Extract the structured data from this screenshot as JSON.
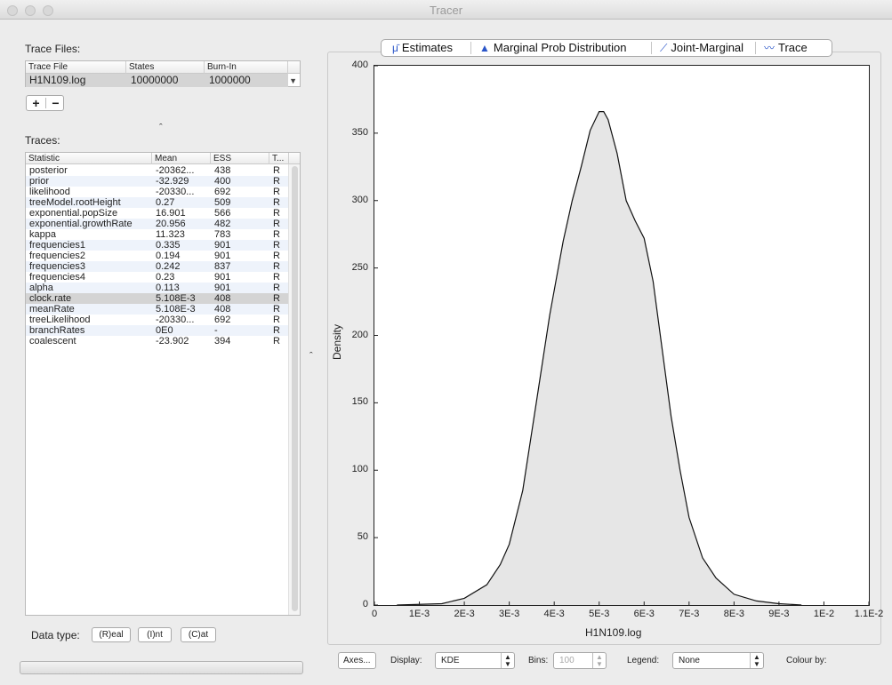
{
  "window": {
    "title": "Tracer"
  },
  "trace_files": {
    "heading": "Trace Files:",
    "columns": [
      "Trace File",
      "States",
      "Burn-In"
    ],
    "rows": [
      {
        "file": "H1N109.log",
        "states": "10000000",
        "burnin": "1000000"
      }
    ],
    "add_label": "+",
    "remove_label": "−"
  },
  "traces": {
    "heading": "Traces:",
    "columns": [
      "Statistic",
      "Mean",
      "ESS",
      "T..."
    ],
    "rows": [
      {
        "stat": "posterior",
        "mean": "-20362...",
        "ess": "438",
        "type": "R"
      },
      {
        "stat": "prior",
        "mean": "-32.929",
        "ess": "400",
        "type": "R"
      },
      {
        "stat": "likelihood",
        "mean": "-20330...",
        "ess": "692",
        "type": "R"
      },
      {
        "stat": "treeModel.rootHeight",
        "mean": "0.27",
        "ess": "509",
        "type": "R"
      },
      {
        "stat": "exponential.popSize",
        "mean": "16.901",
        "ess": "566",
        "type": "R"
      },
      {
        "stat": "exponential.growthRate",
        "mean": "20.956",
        "ess": "482",
        "type": "R"
      },
      {
        "stat": "kappa",
        "mean": "11.323",
        "ess": "783",
        "type": "R"
      },
      {
        "stat": "frequencies1",
        "mean": "0.335",
        "ess": "901",
        "type": "R"
      },
      {
        "stat": "frequencies2",
        "mean": "0.194",
        "ess": "901",
        "type": "R"
      },
      {
        "stat": "frequencies3",
        "mean": "0.242",
        "ess": "837",
        "type": "R"
      },
      {
        "stat": "frequencies4",
        "mean": "0.23",
        "ess": "901",
        "type": "R"
      },
      {
        "stat": "alpha",
        "mean": "0.113",
        "ess": "901",
        "type": "R"
      },
      {
        "stat": "clock.rate",
        "mean": "5.108E-3",
        "ess": "408",
        "type": "R"
      },
      {
        "stat": "meanRate",
        "mean": "5.108E-3",
        "ess": "408",
        "type": "R"
      },
      {
        "stat": "treeLikelihood",
        "mean": "-20330...",
        "ess": "692",
        "type": "R"
      },
      {
        "stat": "branchRates",
        "mean": "0E0",
        "ess": "-",
        "type": "R"
      },
      {
        "stat": "coalescent",
        "mean": "-23.902",
        "ess": "394",
        "type": "R"
      }
    ],
    "selected": "clock.rate"
  },
  "data_type": {
    "label": "Data type:",
    "buttons": [
      "(R)eal",
      "(I)nt",
      "(C)at"
    ]
  },
  "tabs": [
    {
      "label": "Estimates",
      "icon": "estimates-icon"
    },
    {
      "label": "Marginal Prob Distribution",
      "icon": "marginal-distribution-icon"
    },
    {
      "label": "Joint-Marginal",
      "icon": "joint-marginal-icon"
    },
    {
      "label": "Trace",
      "icon": "trace-icon"
    }
  ],
  "chart_data": {
    "type": "area",
    "xlabel": "H1N109.log",
    "ylabel": "Density",
    "xlim": [
      0,
      0.011
    ],
    "ylim": [
      0,
      400
    ],
    "x_ticks": [
      "0",
      "1E-3",
      "2E-3",
      "3E-3",
      "4E-3",
      "5E-3",
      "6E-3",
      "7E-3",
      "8E-3",
      "9E-3",
      "1E-2",
      "1.1E-2"
    ],
    "y_ticks": [
      "0",
      "50",
      "100",
      "150",
      "200",
      "250",
      "300",
      "350",
      "400"
    ],
    "x": [
      0.0005,
      0.0015,
      0.002,
      0.0025,
      0.0028,
      0.003,
      0.0033,
      0.0036,
      0.0039,
      0.0042,
      0.0044,
      0.0046,
      0.0048,
      0.005,
      0.0051,
      0.0052,
      0.0054,
      0.0056,
      0.0058,
      0.006,
      0.0062,
      0.0064,
      0.0066,
      0.0068,
      0.007,
      0.0073,
      0.0076,
      0.008,
      0.0085,
      0.009,
      0.0095
    ],
    "y": [
      0,
      1,
      5,
      15,
      30,
      45,
      85,
      150,
      215,
      270,
      300,
      325,
      352,
      366,
      366,
      360,
      335,
      300,
      285,
      272,
      240,
      190,
      140,
      100,
      65,
      35,
      20,
      8,
      3,
      1,
      0
    ]
  },
  "bottom_controls": {
    "axes_label": "Axes...",
    "display_label": "Display:",
    "display_value": "KDE",
    "bins_label": "Bins:",
    "bins_value": "100",
    "legend_label": "Legend:",
    "legend_value": "None",
    "colour_label": "Colour by:"
  },
  "colors": {
    "selection": "#d4d4d4",
    "fill": "#e6e6e6",
    "accent": "#2b56c9"
  }
}
